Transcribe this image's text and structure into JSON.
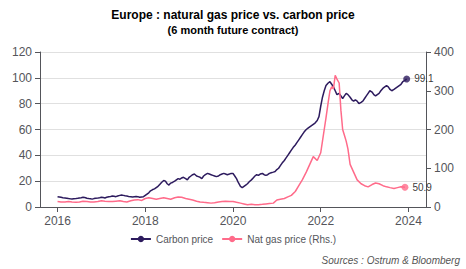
{
  "chart_data": {
    "type": "line",
    "title": "Europe : natural gas price vs. carbon price",
    "subtitle": "(6 month future contract)",
    "series": [
      {
        "name": "Carbon price",
        "color": "#2d1b5e",
        "x": [
          2016.0,
          2016.04,
          2016.08,
          2016.12,
          2016.17,
          2016.21,
          2016.25,
          2016.29,
          2016.33,
          2016.37,
          2016.42,
          2016.46,
          2016.5,
          2016.54,
          2016.58,
          2016.62,
          2016.67,
          2016.71,
          2016.75,
          2016.79,
          2016.83,
          2016.87,
          2016.92,
          2016.96,
          2017.0,
          2017.04,
          2017.08,
          2017.12,
          2017.17,
          2017.21,
          2017.25,
          2017.29,
          2017.33,
          2017.37,
          2017.42,
          2017.46,
          2017.5,
          2017.54,
          2017.58,
          2017.62,
          2017.67,
          2017.71,
          2017.75,
          2017.79,
          2017.83,
          2017.87,
          2017.92,
          2017.96,
          2018.0,
          2018.04,
          2018.08,
          2018.12,
          2018.17,
          2018.21,
          2018.25,
          2018.29,
          2018.33,
          2018.37,
          2018.42,
          2018.46,
          2018.5,
          2018.54,
          2018.58,
          2018.62,
          2018.67,
          2018.71,
          2018.75,
          2018.79,
          2018.83,
          2018.87,
          2018.92,
          2018.96,
          2019.0,
          2019.04,
          2019.08,
          2019.12,
          2019.17,
          2019.21,
          2019.25,
          2019.29,
          2019.33,
          2019.37,
          2019.42,
          2019.46,
          2019.5,
          2019.54,
          2019.58,
          2019.62,
          2019.67,
          2019.71,
          2019.75,
          2019.79,
          2019.83,
          2019.87,
          2019.92,
          2019.96,
          2020.0,
          2020.04,
          2020.08,
          2020.12,
          2020.17,
          2020.21,
          2020.25,
          2020.29,
          2020.33,
          2020.37,
          2020.42,
          2020.46,
          2020.5,
          2020.54,
          2020.58,
          2020.62,
          2020.67,
          2020.71,
          2020.75,
          2020.79,
          2020.83,
          2020.87,
          2020.92,
          2020.96,
          2021.0,
          2021.04,
          2021.08,
          2021.12,
          2021.17,
          2021.21,
          2021.25,
          2021.29,
          2021.33,
          2021.37,
          2021.42,
          2021.46,
          2021.5,
          2021.54,
          2021.58,
          2021.62,
          2021.67,
          2021.71,
          2021.75,
          2021.79,
          2021.83,
          2021.87,
          2021.92,
          2021.96,
          2022.0,
          2022.04,
          2022.08,
          2022.12,
          2022.17,
          2022.21,
          2022.25,
          2022.29,
          2022.33,
          2022.37,
          2022.42,
          2022.46,
          2022.5,
          2022.54,
          2022.58,
          2022.62,
          2022.67,
          2022.71,
          2022.75,
          2022.79,
          2022.83,
          2022.87,
          2022.92,
          2022.96,
          2023.0,
          2023.04,
          2023.08,
          2023.12,
          2023.17,
          2023.21,
          2023.25,
          2023.29,
          2023.33,
          2023.37,
          2023.42,
          2023.46,
          2023.5,
          2023.54,
          2023.58,
          2023.62,
          2023.67,
          2023.71,
          2023.75,
          2023.79,
          2023.83,
          2023.87,
          2023.92,
          2023.96
        ],
        "values": [
          8.0,
          7.8,
          7.5,
          7.2,
          7.0,
          6.8,
          6.5,
          6.3,
          6.2,
          6.4,
          6.5,
          6.7,
          7.0,
          7.2,
          7.5,
          7.3,
          6.8,
          6.5,
          6.3,
          6.1,
          6.5,
          6.8,
          7.0,
          7.2,
          7.5,
          7.3,
          7.0,
          7.5,
          8.0,
          8.2,
          8.5,
          8.3,
          8.0,
          8.5,
          9.0,
          9.2,
          9.0,
          8.7,
          8.5,
          8.2,
          8.0,
          7.8,
          8.0,
          8.2,
          8.0,
          7.5,
          7.8,
          8.0,
          9.0,
          10.0,
          11.0,
          12.5,
          13.5,
          14.0,
          15.0,
          16.0,
          17.5,
          19.0,
          20.5,
          20.0,
          18.0,
          17.0,
          18.5,
          19.0,
          20.0,
          21.0,
          22.0,
          21.5,
          22.5,
          23.0,
          22.0,
          21.0,
          23.0,
          24.0,
          25.0,
          25.5,
          24.0,
          23.5,
          23.0,
          22.0,
          24.0,
          25.0,
          26.0,
          25.5,
          25.0,
          24.5,
          24.0,
          23.5,
          24.0,
          25.0,
          25.5,
          26.0,
          25.5,
          25.0,
          25.5,
          26.0,
          26.0,
          24.0,
          22.0,
          19.0,
          16.0,
          15.0,
          16.0,
          17.0,
          18.0,
          19.5,
          21.0,
          22.5,
          24.0,
          25.0,
          24.5,
          25.5,
          26.0,
          25.0,
          24.5,
          25.0,
          26.0,
          26.5,
          27.0,
          27.5,
          29.0,
          30.0,
          32.0,
          34.0,
          36.0,
          38.0,
          40.0,
          42.0,
          44.0,
          46.0,
          48.0,
          50.0,
          52.0,
          54.0,
          56.0,
          58.0,
          60.0,
          61.0,
          62.0,
          63.0,
          64.0,
          65.0,
          67.0,
          70.0,
          78.0,
          85.0,
          90.0,
          94.0,
          96.0,
          97.0,
          95.0,
          93.0,
          90.0,
          87.0,
          88.0,
          86.0,
          84.0,
          86.0,
          88.0,
          87.0,
          85.0,
          83.0,
          82.0,
          83.0,
          82.0,
          80.0,
          81.0,
          82.0,
          84.0,
          86.0,
          88.0,
          90.0,
          89.0,
          87.0,
          86.0,
          87.0,
          88.0,
          90.0,
          92.0,
          93.0,
          94.0,
          93.0,
          91.0,
          90.0,
          91.0,
          92.0,
          93.0,
          94.0,
          95.0,
          97.0,
          98.0,
          99.1
        ]
      },
      {
        "name": "Nat gas price (Rhs.)",
        "color": "#ff6b8a",
        "axis": "y2",
        "x": [
          2016.0,
          2016.08,
          2016.17,
          2016.25,
          2016.33,
          2016.42,
          2016.5,
          2016.58,
          2016.67,
          2016.75,
          2016.83,
          2016.92,
          2017.0,
          2017.08,
          2017.17,
          2017.25,
          2017.33,
          2017.42,
          2017.5,
          2017.58,
          2017.67,
          2017.75,
          2017.83,
          2017.92,
          2018.0,
          2018.08,
          2018.17,
          2018.25,
          2018.33,
          2018.42,
          2018.5,
          2018.58,
          2018.67,
          2018.75,
          2018.83,
          2018.92,
          2019.0,
          2019.08,
          2019.17,
          2019.25,
          2019.33,
          2019.42,
          2019.5,
          2019.58,
          2019.67,
          2019.75,
          2019.83,
          2019.92,
          2020.0,
          2020.08,
          2020.17,
          2020.25,
          2020.33,
          2020.42,
          2020.5,
          2020.58,
          2020.67,
          2020.75,
          2020.83,
          2020.92,
          2021.0,
          2021.08,
          2021.17,
          2021.25,
          2021.33,
          2021.42,
          2021.5,
          2021.58,
          2021.67,
          2021.75,
          2021.83,
          2021.92,
          2022.0,
          2022.04,
          2022.08,
          2022.12,
          2022.17,
          2022.21,
          2022.25,
          2022.29,
          2022.33,
          2022.37,
          2022.42,
          2022.46,
          2022.5,
          2022.54,
          2022.58,
          2022.62,
          2022.67,
          2022.75,
          2022.83,
          2022.92,
          2023.0,
          2023.08,
          2023.17,
          2023.25,
          2023.33,
          2023.42,
          2023.5,
          2023.58,
          2023.67,
          2023.75,
          2023.83,
          2023.92
        ],
        "values": [
          14,
          13,
          13,
          14,
          13,
          12,
          13,
          15,
          14,
          13,
          13,
          14,
          16,
          15,
          14,
          14,
          15,
          16,
          14,
          13,
          16,
          18,
          19,
          17,
          22,
          24,
          22,
          20,
          22,
          24,
          22,
          20,
          24,
          26,
          25,
          22,
          20,
          18,
          15,
          13,
          12,
          11,
          10,
          11,
          13,
          14,
          15,
          14,
          14,
          12,
          10,
          8,
          6,
          7,
          6,
          6,
          7,
          8,
          9,
          10,
          18,
          20,
          22,
          26,
          30,
          40,
          55,
          70,
          90,
          110,
          130,
          120,
          140,
          170,
          200,
          230,
          270,
          300,
          310,
          305,
          340,
          330,
          320,
          250,
          200,
          185,
          170,
          150,
          110,
          90,
          70,
          60,
          55,
          52,
          58,
          62,
          60,
          55,
          52,
          50,
          48,
          50,
          52,
          50.9
        ]
      }
    ],
    "xlim": [
      2015.6,
      2024.4
    ],
    "xticks": [
      2016,
      2018,
      2020,
      2022,
      2024
    ],
    "ylim": [
      0,
      120
    ],
    "yticks": [
      0,
      20,
      40,
      60,
      80,
      100,
      120
    ],
    "y2lim": [
      0,
      400
    ],
    "y2ticks": [
      0,
      100,
      200,
      300,
      400
    ],
    "grid": true,
    "legend": "bottom",
    "annotations": [
      {
        "text": "99.1",
        "x": 2023.96,
        "y": 99.1
      },
      {
        "text": "50.9",
        "x": 2023.92,
        "y": 50.9,
        "axis": "y2"
      },
      {
        "text": "Sources : Ostrum & Bloomberg"
      }
    ]
  }
}
